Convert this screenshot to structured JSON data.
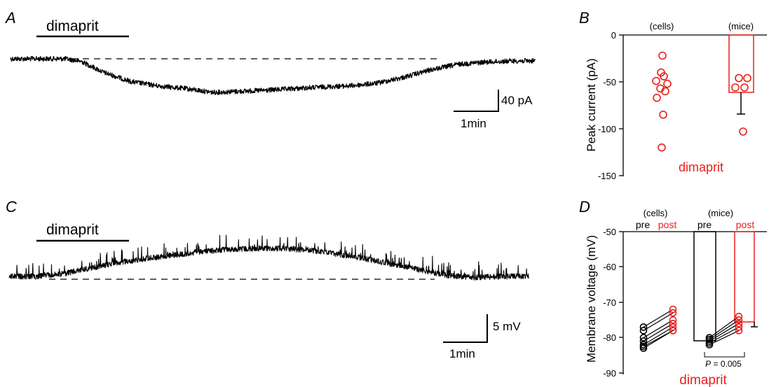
{
  "panels": {
    "A": {
      "label": "A",
      "drug_label": "dimaprit",
      "scale_y_label": "40 pA",
      "scale_x_label": "1min"
    },
    "B": {
      "label": "B",
      "ylabel": "Peak current (pA)",
      "yticks": [
        "0",
        "-50",
        "-100",
        "-150"
      ],
      "group_labels": [
        "(cells)",
        "(mice)"
      ],
      "xlabel": "dimaprit"
    },
    "C": {
      "label": "C",
      "drug_label": "dimaprit",
      "scale_y_label": "5 mV",
      "scale_x_label": "1min"
    },
    "D": {
      "label": "D",
      "ylabel": "Membrane voltage (mV)",
      "yticks": [
        "-50",
        "-60",
        "-70",
        "-80",
        "-90"
      ],
      "cells_label": "(cells)",
      "mice_label": "(mice)",
      "pre_label": "pre",
      "post_label": "post",
      "xlabel": "dimaprit",
      "p_italic": "P",
      "p_rest": " = 0.005"
    }
  },
  "colors": {
    "black": "#000000",
    "red": "#e8201c"
  },
  "chart_data": [
    {
      "panel": "A",
      "type": "line",
      "description_units": {
        "x": "min",
        "y": "pA"
      },
      "x": [
        0,
        0.5,
        1.0,
        1.3,
        1.7,
        2.2,
        2.7,
        3.2,
        3.7,
        4.2,
        4.7,
        5.2,
        5.7,
        6.2,
        6.7,
        7.2,
        7.7,
        8.2,
        8.7,
        9.2,
        9.6
      ],
      "y": [
        0,
        0,
        0,
        -5,
        -25,
        -42,
        -50,
        -55,
        -62,
        -60,
        -58,
        -55,
        -52,
        -50,
        -45,
        -34,
        -20,
        -10,
        -6,
        -4,
        -4
      ],
      "baseline": 0,
      "drug_bar_min": [
        0.5,
        2.2
      ]
    },
    {
      "panel": "B",
      "type": "scatter",
      "ylim": [
        -150,
        0
      ],
      "series": [
        {
          "name": "(cells)",
          "values": [
            -22,
            -40,
            -44,
            -49,
            -52,
            -57,
            -60,
            -67,
            -85,
            -120
          ]
        },
        {
          "name": "(mice)",
          "values": [
            -46,
            -46,
            -56,
            -56,
            -103
          ],
          "mean": -62,
          "error_low": -85
        }
      ]
    },
    {
      "panel": "C",
      "type": "line",
      "description_units": {
        "x": "min",
        "y": "mV"
      },
      "x": [
        0,
        0.5,
        1.0,
        1.5,
        2.0,
        2.5,
        3.0,
        3.5,
        4.0,
        4.5,
        5.0,
        5.5,
        6.0,
        6.5,
        7.0,
        7.5,
        8.0,
        8.5,
        9.0,
        9.5
      ],
      "y": [
        0,
        0,
        0.5,
        1.5,
        2.5,
        3.2,
        3.8,
        4.4,
        4.8,
        5.0,
        5.0,
        4.7,
        4.0,
        3.2,
        2.2,
        1.2,
        0.2,
        -0.2,
        0,
        0
      ],
      "baseline": 0,
      "drug_bar_min": [
        0.5,
        2.2
      ]
    },
    {
      "panel": "D",
      "type": "scatter",
      "ylim": [
        -90,
        -50
      ],
      "cells_pairs": {
        "pre": [
          -77,
          -78,
          -80,
          -81,
          -82,
          -82.5,
          -83
        ],
        "post": [
          -72,
          -73,
          -75,
          -76,
          -77,
          -78,
          -78
        ]
      },
      "mice_pairs": {
        "pre": [
          -80,
          -80.5,
          -81,
          -81.5,
          -82
        ],
        "post": [
          -74,
          -75,
          -76,
          -77,
          -78
        ],
        "pre_mean": -81,
        "post_mean": -76,
        "post_error_low": -77
      },
      "p_value": "P = 0.005"
    }
  ]
}
